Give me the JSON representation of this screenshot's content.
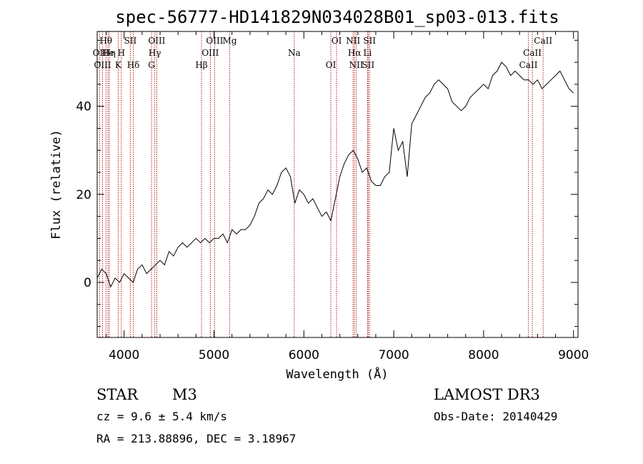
{
  "chart_data": {
    "type": "line",
    "title": "spec-56777-HD141829N034028B01_sp03-013.fits",
    "xlabel": "Wavelength (Å)",
    "ylabel": "Flux (relative)",
    "xlim": [
      3700,
      9050
    ],
    "ylim": [
      -12.5,
      57
    ],
    "xticks": [
      4000,
      5000,
      6000,
      7000,
      8000,
      9000
    ],
    "xtick_labels": [
      "4000",
      "5000",
      "6000",
      "7000",
      "8000",
      "9000"
    ],
    "yticks": [
      0,
      20,
      40
    ],
    "ytick_labels": [
      "0",
      "20",
      "40"
    ],
    "series": [
      {
        "name": "spectrum",
        "x": [
          3700,
          3750,
          3800,
          3850,
          3900,
          3950,
          4000,
          4050,
          4100,
          4150,
          4200,
          4250,
          4300,
          4350,
          4400,
          4450,
          4500,
          4550,
          4600,
          4650,
          4700,
          4750,
          4800,
          4850,
          4900,
          4950,
          5000,
          5050,
          5100,
          5150,
          5200,
          5250,
          5300,
          5350,
          5400,
          5450,
          5500,
          5550,
          5600,
          5650,
          5700,
          5750,
          5800,
          5850,
          5900,
          5950,
          6000,
          6050,
          6100,
          6150,
          6200,
          6250,
          6300,
          6350,
          6400,
          6450,
          6500,
          6550,
          6600,
          6650,
          6700,
          6750,
          6800,
          6850,
          6900,
          6950,
          7000,
          7050,
          7100,
          7150,
          7200,
          7250,
          7300,
          7350,
          7400,
          7450,
          7500,
          7550,
          7600,
          7650,
          7700,
          7750,
          7800,
          7850,
          7900,
          7950,
          8000,
          8050,
          8100,
          8150,
          8200,
          8250,
          8300,
          8350,
          8400,
          8450,
          8500,
          8550,
          8600,
          8650,
          8700,
          8750,
          8800,
          8850,
          8900,
          8950,
          9000
        ],
        "y": [
          1,
          3,
          2,
          -1,
          1,
          0,
          2,
          1,
          0,
          3,
          4,
          2,
          3,
          4,
          5,
          4,
          7,
          6,
          8,
          9,
          8,
          9,
          10,
          9,
          10,
          9,
          10,
          10,
          11,
          9,
          12,
          11,
          12,
          12,
          13,
          15,
          18,
          19,
          21,
          20,
          22,
          25,
          26,
          24,
          18,
          21,
          20,
          18,
          19,
          17,
          15,
          16,
          14,
          19,
          24,
          27,
          29,
          30,
          28,
          25,
          26,
          23,
          22,
          22,
          24,
          25,
          35,
          30,
          32,
          24,
          36,
          38,
          40,
          42,
          43,
          45,
          46,
          45,
          44,
          41,
          40,
          39,
          40,
          42,
          43,
          44,
          45,
          44,
          47,
          48,
          50,
          49,
          47,
          48,
          47,
          46,
          46,
          45,
          46,
          44,
          45,
          46,
          47,
          48,
          46,
          44,
          43
        ]
      }
    ],
    "lines": [
      {
        "name": "Hθ",
        "wavelength": 3798
      },
      {
        "name": "OII",
        "wavelength": 3727
      },
      {
        "name": "OIII",
        "wavelength": 3760
      },
      {
        "name": "He",
        "wavelength": 3820
      },
      {
        "name": "Hη",
        "wavelength": 3835
      },
      {
        "name": "K",
        "wavelength": 3934
      },
      {
        "name": "SII",
        "wavelength": 4069
      },
      {
        "name": "H",
        "wavelength": 3969
      },
      {
        "name": "Hδ",
        "wavelength": 4102
      },
      {
        "name": "OIII",
        "wavelength": 4363
      },
      {
        "name": "Hγ",
        "wavelength": 4341
      },
      {
        "name": "G",
        "wavelength": 4305
      },
      {
        "name": "OIII",
        "wavelength": 5007
      },
      {
        "name": "OIII",
        "wavelength": 4959
      },
      {
        "name": "Hβ",
        "wavelength": 4861
      },
      {
        "name": "Mg",
        "wavelength": 5175
      },
      {
        "name": "Na",
        "wavelength": 5893
      },
      {
        "name": "OI",
        "wavelength": 6300
      },
      {
        "name": "OI",
        "wavelength": 6364
      },
      {
        "name": "Hα",
        "wavelength": 6563
      },
      {
        "name": "SII",
        "wavelength": 6716
      },
      {
        "name": "NII",
        "wavelength": 6548
      },
      {
        "name": "Li",
        "wavelength": 6708
      },
      {
        "name": "NII",
        "wavelength": 6583
      },
      {
        "name": "SII",
        "wavelength": 6731
      },
      {
        "name": "CaII",
        "wavelength": 8542
      },
      {
        "name": "CaII",
        "wavelength": 8498
      },
      {
        "name": "CaII",
        "wavelength": 8662
      }
    ],
    "line_color": "#b22222"
  },
  "info": {
    "class": "STAR",
    "subclass": "M3",
    "survey": "LAMOST DR3",
    "cz": "cz = 9.6 ± 5.4 km/s",
    "obs_date": "Obs-Date: 20140429",
    "coords": "RA = 213.88896, DEC =    3.18967"
  }
}
